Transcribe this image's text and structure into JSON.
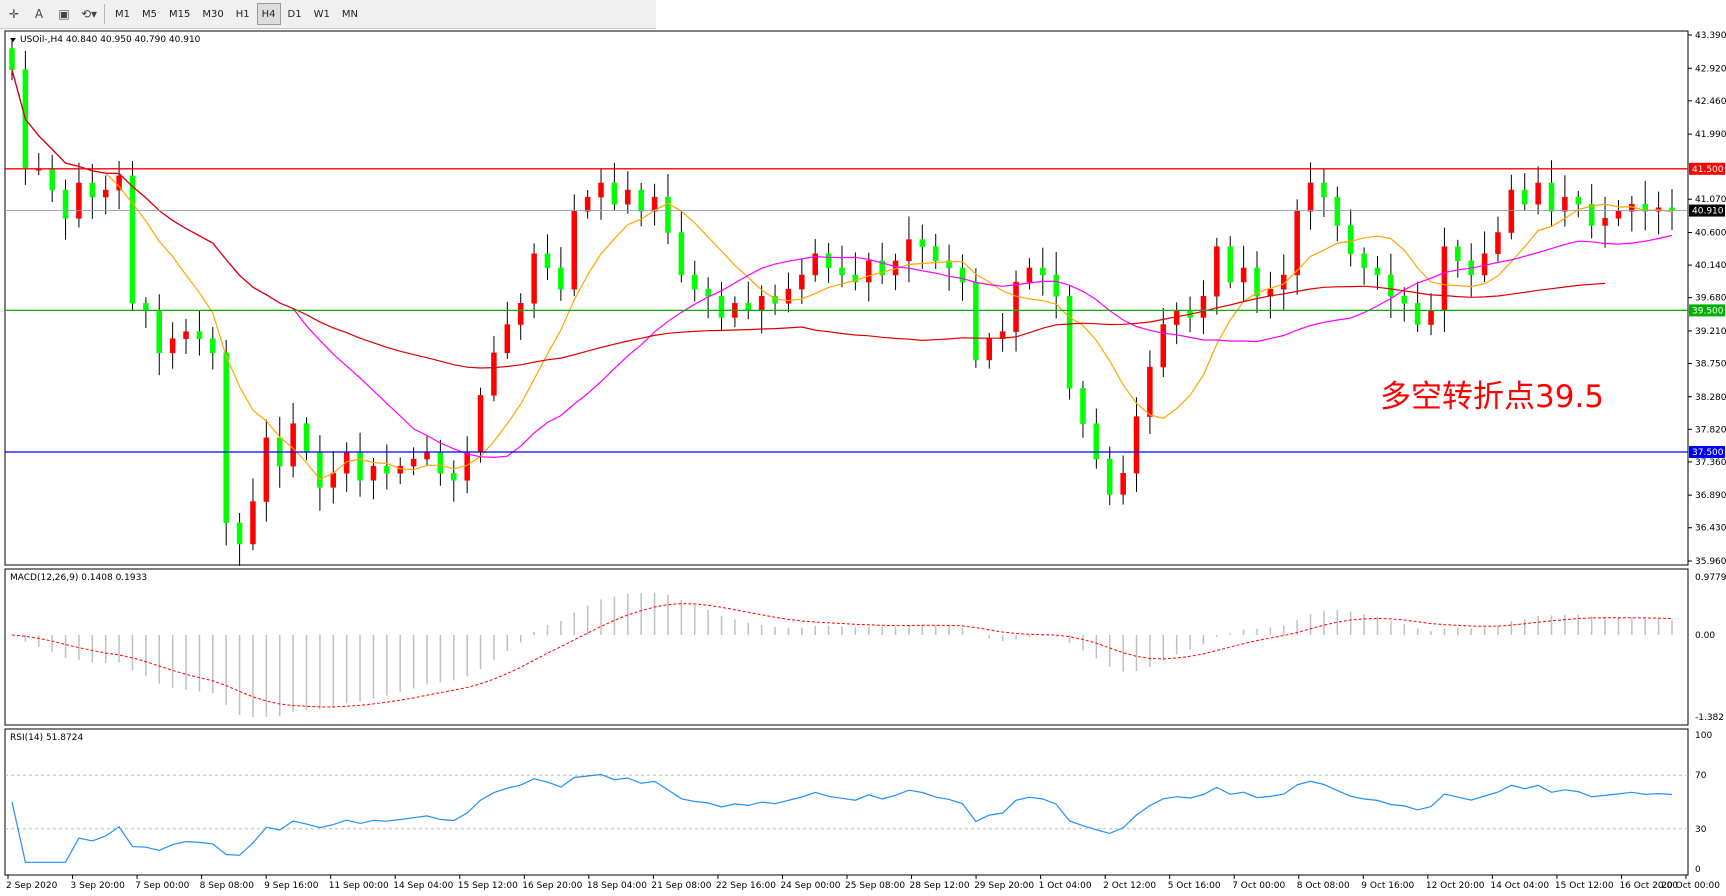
{
  "toolbar": {
    "icons": [
      "crosshair-icon",
      "text-icon",
      "text-label-icon",
      "shapes-icon"
    ],
    "text_tool_label": "A",
    "timeframes": [
      "M1",
      "M5",
      "M15",
      "M30",
      "H1",
      "H4",
      "D1",
      "W1",
      "MN"
    ],
    "active_timeframe": "H4"
  },
  "chart_data": [
    {
      "type": "candlestick",
      "title": "USOil-,H4 40.840 40.950 40.790 40.910",
      "symbol": "USOil-",
      "timeframe": "H4",
      "ohlc_last": {
        "open": 40.84,
        "high": 40.95,
        "low": 40.79,
        "close": 40.91
      },
      "ylim": [
        35.96,
        43.39
      ],
      "y_ticks": [
        "43.390",
        "42.920",
        "42.460",
        "41.990",
        "41.070",
        "40.600",
        "40.140",
        "39.680",
        "39.210",
        "38.750",
        "38.280",
        "37.820",
        "37.360",
        "36.890",
        "36.430",
        "35.960"
      ],
      "x_ticks": [
        "2 Sep 2020",
        "3 Sep 20:00",
        "7 Sep 00:00",
        "8 Sep 08:00",
        "9 Sep 16:00",
        "11 Sep 00:00",
        "14 Sep 04:00",
        "15 Sep 12:00",
        "16 Sep 20:00",
        "18 Sep 04:00",
        "21 Sep 08:00",
        "22 Sep 16:00",
        "24 Sep 00:00",
        "25 Sep 08:00",
        "28 Sep 12:00",
        "29 Sep 20:00",
        "1 Oct 04:00",
        "2 Oct 12:00",
        "5 Oct 16:00",
        "7 Oct 00:00",
        "8 Oct 08:00",
        "9 Oct 16:00",
        "12 Oct 20:00",
        "14 Oct 04:00",
        "15 Oct 12:00",
        "16 Oct 20:00",
        "20 Oct 00:00"
      ],
      "closes": [
        42.9,
        41.5,
        41.5,
        41.2,
        40.8,
        41.3,
        41.1,
        41.2,
        41.4,
        39.6,
        39.5,
        38.9,
        39.1,
        39.2,
        39.1,
        38.9,
        36.5,
        36.2,
        36.8,
        37.7,
        37.3,
        37.9,
        37.5,
        37.0,
        37.2,
        37.5,
        37.1,
        37.3,
        37.2,
        37.3,
        37.4,
        37.5,
        37.2,
        37.1,
        37.5,
        38.3,
        38.9,
        39.3,
        39.6,
        40.3,
        40.1,
        39.8,
        40.9,
        41.1,
        41.3,
        41.0,
        41.2,
        40.9,
        41.1,
        40.6,
        40.0,
        39.8,
        39.7,
        39.4,
        39.6,
        39.5,
        39.7,
        39.6,
        39.8,
        40.0,
        40.3,
        40.1,
        40.0,
        39.9,
        40.2,
        40.0,
        40.2,
        40.5,
        40.4,
        40.2,
        40.1,
        39.9,
        38.8,
        39.1,
        39.2,
        39.9,
        40.1,
        40.0,
        39.7,
        38.4,
        37.9,
        37.4,
        36.9,
        37.2,
        38.0,
        38.7,
        39.3,
        39.5,
        39.4,
        39.7,
        40.4,
        39.9,
        40.1,
        39.7,
        39.8,
        40.0,
        40.9,
        41.3,
        41.1,
        40.7,
        40.3,
        40.1,
        40.0,
        39.7,
        39.6,
        39.3,
        39.5,
        40.4,
        40.2,
        40.0,
        40.3,
        40.6,
        41.2,
        41.0,
        41.3,
        40.9,
        41.1,
        41.0,
        40.7,
        40.8,
        40.9,
        41.0,
        40.9,
        40.95,
        40.91
      ],
      "horizontal_levels": [
        {
          "value": 41.5,
          "label": "41.500",
          "color": "#ff0000"
        },
        {
          "value": 39.5,
          "label": "39.500",
          "color": "#00b000"
        },
        {
          "value": 37.5,
          "label": "37.500",
          "color": "#0000ff"
        }
      ],
      "current_price": {
        "value": 40.91,
        "label": "40.910"
      },
      "annotation": {
        "text": "多空转折点39.5",
        "color": "#ff0000"
      },
      "series_colors": {
        "bull": "#ff0000",
        "bear": "#00ff00",
        "ma_fast": "#ffa500",
        "ma_mid": "#ff00ff",
        "ma_slow": "#dd0000"
      }
    },
    {
      "type": "histogram_line",
      "title": "MACD(12,26,9) 0.1408 0.1933",
      "ylim": [
        -1.382,
        0.9779
      ],
      "y_ticks": [
        "0.9779",
        "0.00",
        "-1.382"
      ],
      "signal_color": "#ff0000",
      "histogram_color": "#c0c0c0"
    },
    {
      "type": "line",
      "title": "RSI(14) 51.8724",
      "ylim": [
        0,
        100
      ],
      "y_ticks": [
        "100",
        "70",
        "30",
        "0"
      ],
      "levels": [
        70,
        30
      ],
      "line_color": "#1e90ff"
    }
  ]
}
